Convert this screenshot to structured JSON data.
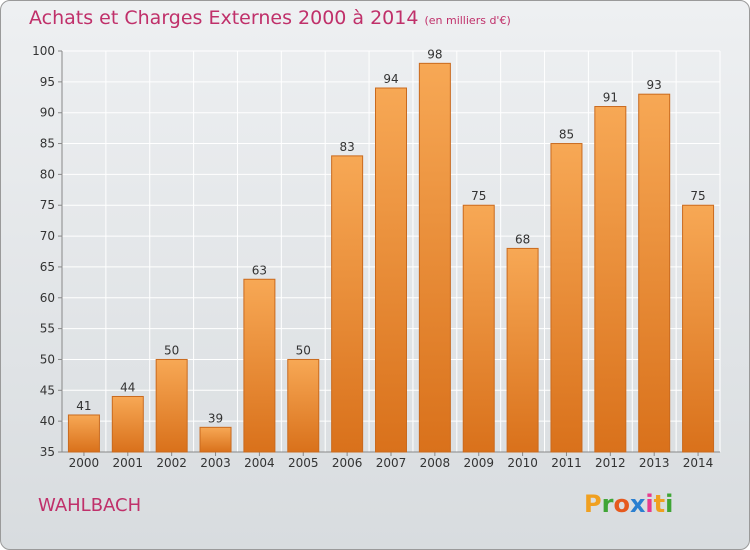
{
  "title": "Achats et Charges Externes 2000 à 2014",
  "unit": "(en milliers d'€)",
  "commune": "WAHLBACH",
  "logo": {
    "letters": [
      "P",
      "r",
      "o",
      "x",
      "i",
      "t",
      "i"
    ],
    "colors": [
      "#f0a020",
      "#3fa535",
      "#e65a1e",
      "#2a7fd0",
      "#e83a8f",
      "#f0a020",
      "#3fa535"
    ]
  },
  "colors": {
    "title": "#c0306a",
    "bar_top": "#f7a855",
    "bar_bottom": "#d9711b",
    "bar_edge": "#c96a1e",
    "grid": "#ffffff",
    "axis_text": "#333333"
  },
  "chart_data": {
    "type": "bar",
    "categories": [
      "2000",
      "2001",
      "2002",
      "2003",
      "2004",
      "2005",
      "2006",
      "2007",
      "2008",
      "2009",
      "2010",
      "2011",
      "2012",
      "2013",
      "2014"
    ],
    "values": [
      41,
      44,
      50,
      39,
      63,
      50,
      83,
      94,
      98,
      75,
      68,
      85,
      91,
      93,
      75
    ],
    "ylim": [
      35,
      100
    ],
    "yticks": [
      35,
      40,
      45,
      50,
      55,
      60,
      65,
      70,
      75,
      80,
      85,
      90,
      95,
      100
    ],
    "grid": true,
    "title": "Achats et Charges Externes 2000 à 2014",
    "xlabel": "",
    "ylabel": ""
  }
}
